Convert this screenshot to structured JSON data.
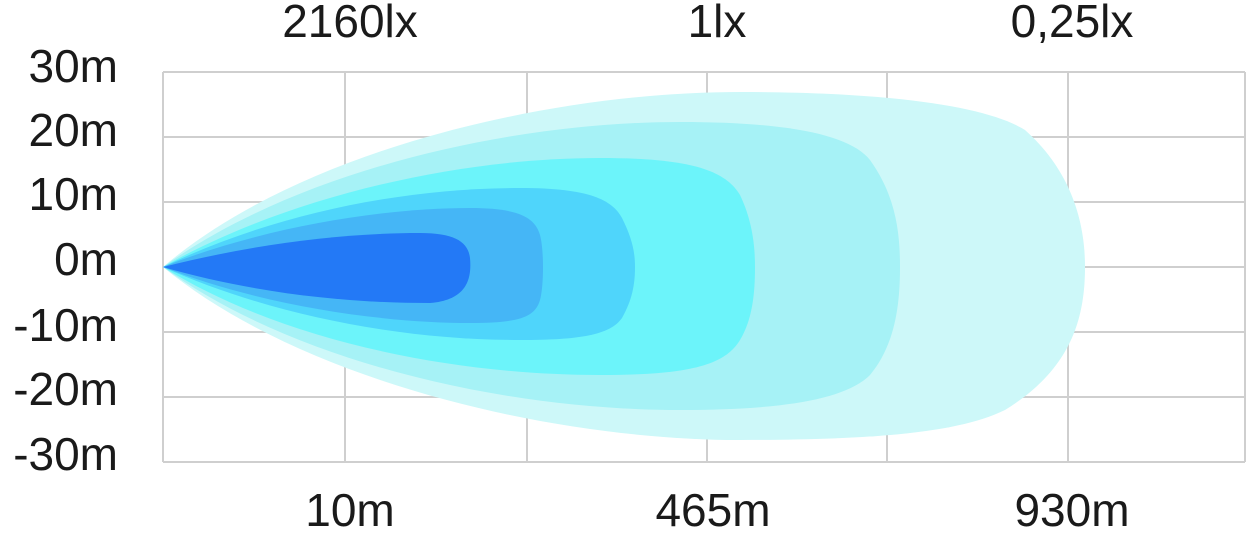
{
  "y_labels": [
    "30m",
    "20m",
    "10m",
    "0m",
    "-10m",
    "-20m",
    "-30m"
  ],
  "top_labels": [
    "2160lx",
    "1lx",
    "0,25lx"
  ],
  "bottom_labels": [
    "10m",
    "465m",
    "930m"
  ]
}
